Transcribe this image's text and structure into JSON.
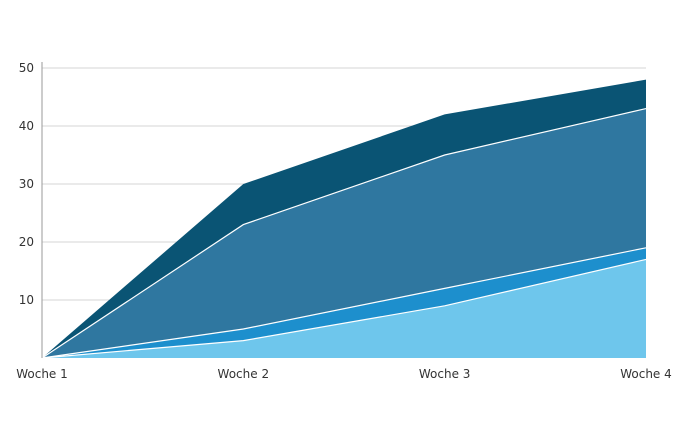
{
  "chart_data": {
    "type": "area",
    "stacked": true,
    "categories": [
      "Woche 1",
      "Woche 2",
      "Woche 3",
      "Woche 4"
    ],
    "y_ticks": [
      "10",
      "20",
      "30",
      "40",
      "50"
    ],
    "ylim": [
      0,
      50
    ],
    "grid": true,
    "legend": "none",
    "series": [
      {
        "color": "#6ec6ec",
        "values": [
          0,
          3,
          9,
          17
        ]
      },
      {
        "color": "#1d8fcd",
        "values": [
          0,
          2,
          3,
          2
        ]
      },
      {
        "color": "#2f77a0",
        "values": [
          0,
          18,
          23,
          24
        ]
      },
      {
        "color": "#0a5474",
        "values": [
          0,
          7,
          7,
          5
        ]
      }
    ]
  }
}
